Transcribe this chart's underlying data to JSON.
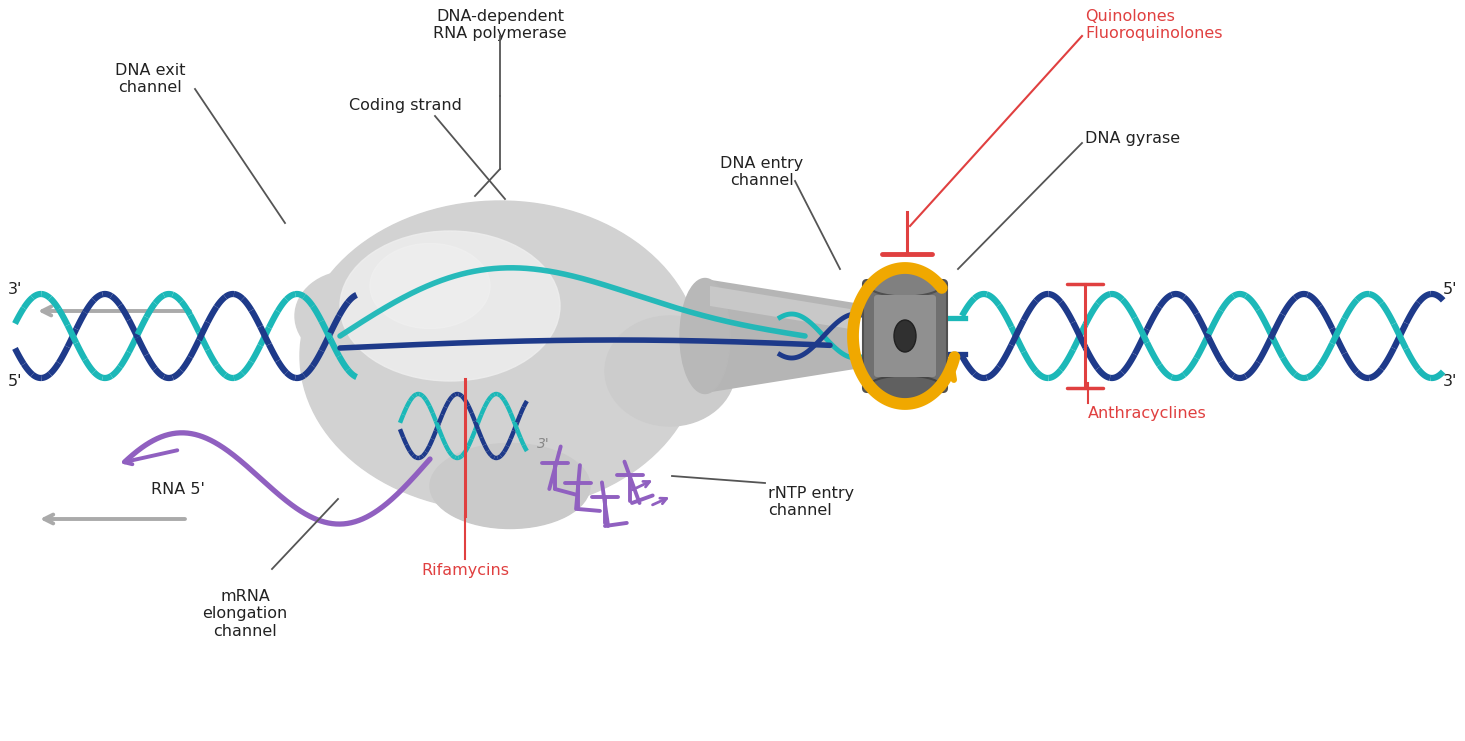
{
  "bg_color": "#ffffff",
  "dna_teal": "#1cb8b8",
  "dna_navy": "#1e3a8a",
  "rna_purple": "#9060c0",
  "gyrase_arrow": "#f0a800",
  "red": "#e04040",
  "black": "#222222",
  "label_fs": 11.5,
  "blob_outer": "#d2d2d2",
  "blob_inner": "#e5e5e5",
  "blob_lighter": "#eeeeee",
  "gyrase_dark": "#606060",
  "gyrase_mid": "#888888",
  "gyrase_light": "#a0a0a0",
  "cone_gray": "#b8b8b8",
  "labels": {
    "dna_dependent": "DNA-dependent\nRNA polymerase",
    "dna_exit": "DNA exit\nchannel",
    "coding_strand": "Coding strand",
    "dna_entry": "DNA entry\nchannel",
    "quinolones": "Quinolones\nFluoroquinolones",
    "dna_gyrase": "DNA gyrase",
    "anthracyclines": "Anthracyclines",
    "rifamycins": "Rifamycins",
    "rntp": "rNTP entry\nchannel",
    "mrna": "mRNA\nelongation\nchannel",
    "rna5": "RNA 5'",
    "p3l": "3'",
    "p5l": "5'",
    "p5r": "5'",
    "p3r": "3'",
    "p3mid": "3'"
  }
}
